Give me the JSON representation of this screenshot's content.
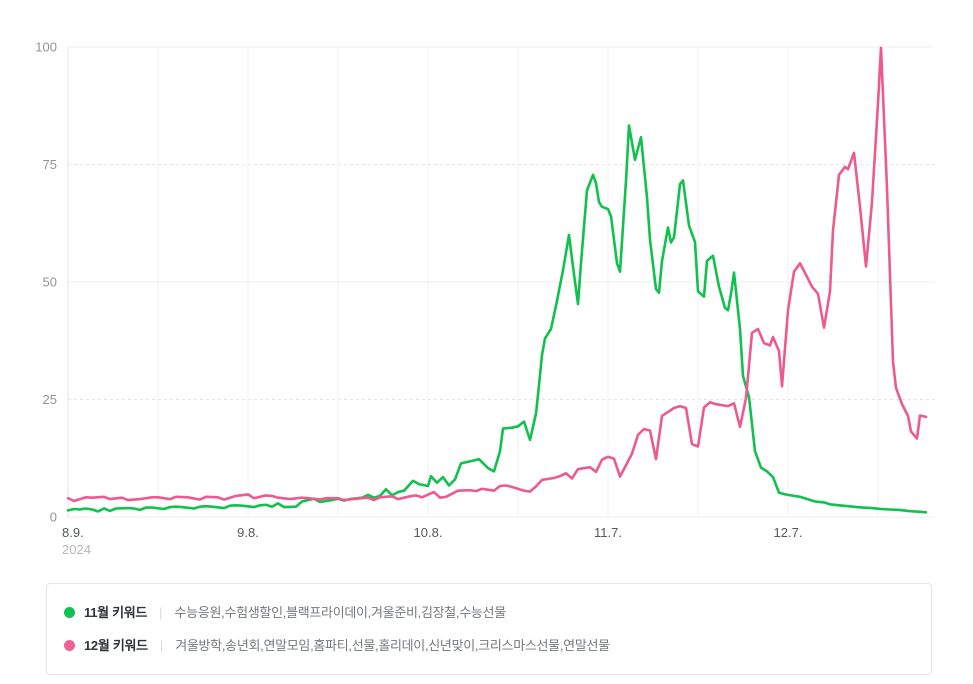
{
  "chart_data": {
    "type": "line",
    "title": "",
    "x_axis": {
      "unit": "date",
      "x_range_days": [
        0,
        144.5
      ],
      "minor_grid_every_days": 15,
      "ticks": [
        {
          "day": 0,
          "label": "8.9.",
          "sub": "2024"
        },
        {
          "day": 30,
          "label": "9.8."
        },
        {
          "day": 60,
          "label": "10.8."
        },
        {
          "day": 90,
          "label": "11.7."
        },
        {
          "day": 120,
          "label": "12.7."
        }
      ]
    },
    "y_axis": {
      "range": [
        0,
        100
      ],
      "ticks": [
        0,
        25,
        50,
        75,
        100
      ]
    },
    "grid": {
      "h_solid": [
        0,
        50,
        100
      ],
      "h_dashed": [
        25,
        75
      ],
      "vertical": true
    },
    "legend_position": "bottom",
    "series": [
      {
        "name": "11월 키워드",
        "color": "#10c14e",
        "points": [
          [
            0,
            1.4
          ],
          [
            1,
            1.7
          ],
          [
            2,
            1.6
          ],
          [
            3,
            1.8
          ],
          [
            4,
            1.6
          ],
          [
            5,
            1.2
          ],
          [
            6,
            1.8
          ],
          [
            7,
            1.3
          ],
          [
            8,
            1.8
          ],
          [
            10,
            1.9
          ],
          [
            11,
            1.8
          ],
          [
            12,
            1.5
          ],
          [
            13,
            2.0
          ],
          [
            14,
            2.0
          ],
          [
            16,
            1.7
          ],
          [
            17,
            2.1
          ],
          [
            18,
            2.2
          ],
          [
            19,
            2.1
          ],
          [
            21,
            1.8
          ],
          [
            22,
            2.2
          ],
          [
            23,
            2.3
          ],
          [
            24,
            2.2
          ],
          [
            26,
            1.9
          ],
          [
            27,
            2.4
          ],
          [
            28,
            2.5
          ],
          [
            29,
            2.4
          ],
          [
            31,
            2.1
          ],
          [
            32,
            2.5
          ],
          [
            33,
            2.6
          ],
          [
            34,
            2.2
          ],
          [
            35,
            2.9
          ],
          [
            36,
            2.1
          ],
          [
            38,
            2.2
          ],
          [
            39,
            3.3
          ],
          [
            40,
            3.6
          ],
          [
            41,
            3.9
          ],
          [
            42,
            3.2
          ],
          [
            44,
            3.6
          ],
          [
            45,
            3.9
          ],
          [
            46,
            3.5
          ],
          [
            47,
            3.8
          ],
          [
            49,
            4.1
          ],
          [
            50,
            4.7
          ],
          [
            51,
            4.1
          ],
          [
            52,
            4.5
          ],
          [
            53,
            5.9
          ],
          [
            54,
            4.6
          ],
          [
            55,
            5.3
          ],
          [
            56,
            5.6
          ],
          [
            57.5,
            7.7
          ],
          [
            58.5,
            7.0
          ],
          [
            60,
            6.6
          ],
          [
            60.5,
            8.7
          ],
          [
            61.5,
            7.3
          ],
          [
            62.5,
            8.5
          ],
          [
            63.5,
            6.7
          ],
          [
            64.5,
            8.0
          ],
          [
            65.5,
            11.4
          ],
          [
            66.5,
            11.7
          ],
          [
            67.5,
            12.0
          ],
          [
            68.5,
            12.3
          ],
          [
            70,
            10.4
          ],
          [
            71,
            9.7
          ],
          [
            72,
            14.0
          ],
          [
            72.5,
            18.8
          ],
          [
            74,
            19.0
          ],
          [
            75,
            19.3
          ],
          [
            76,
            20.3
          ],
          [
            77,
            16.4
          ],
          [
            78,
            22.0
          ],
          [
            78.5,
            28.0
          ],
          [
            79,
            34.5
          ],
          [
            79.5,
            38.0
          ],
          [
            80.5,
            40.0
          ],
          [
            81.5,
            46.0
          ],
          [
            82.5,
            52.5
          ],
          [
            83.5,
            60.0
          ],
          [
            84.5,
            50.0
          ],
          [
            85,
            45.3
          ],
          [
            85.5,
            54.0
          ],
          [
            86.5,
            69.5
          ],
          [
            87.5,
            72.8
          ],
          [
            88,
            71.0
          ],
          [
            88.5,
            67.0
          ],
          [
            89,
            66.0
          ],
          [
            90,
            65.5
          ],
          [
            90.5,
            64.0
          ],
          [
            91.5,
            54.0
          ],
          [
            92,
            52.2
          ],
          [
            93,
            71.5
          ],
          [
            93.5,
            83.3
          ],
          [
            94.5,
            76.0
          ],
          [
            95.5,
            80.8
          ],
          [
            96.5,
            68.0
          ],
          [
            97,
            59.0
          ],
          [
            98,
            48.5
          ],
          [
            98.5,
            47.7
          ],
          [
            99,
            54.5
          ],
          [
            100,
            61.6
          ],
          [
            100.5,
            58.4
          ],
          [
            101,
            59.5
          ],
          [
            102,
            70.8
          ],
          [
            102.5,
            71.6
          ],
          [
            103.5,
            62.0
          ],
          [
            104.5,
            58.5
          ],
          [
            105,
            48.0
          ],
          [
            106,
            46.9
          ],
          [
            106.5,
            54.5
          ],
          [
            107.5,
            55.6
          ],
          [
            108.5,
            49.0
          ],
          [
            109.5,
            44.5
          ],
          [
            110,
            44.0
          ],
          [
            110.5,
            47.5
          ],
          [
            111,
            52.0
          ],
          [
            112,
            40.0
          ],
          [
            112.5,
            30.0
          ],
          [
            113.5,
            25.5
          ],
          [
            114.5,
            14.0
          ],
          [
            115.5,
            10.5
          ],
          [
            116.5,
            9.7
          ],
          [
            117.5,
            8.5
          ],
          [
            118.5,
            5.2
          ],
          [
            119.5,
            4.8
          ],
          [
            121,
            4.5
          ],
          [
            122,
            4.3
          ],
          [
            123.5,
            3.7
          ],
          [
            124.5,
            3.3
          ],
          [
            126,
            3.1
          ],
          [
            127,
            2.7
          ],
          [
            128.5,
            2.5
          ],
          [
            130,
            2.3
          ],
          [
            131.5,
            2.1
          ],
          [
            132.5,
            2.0
          ],
          [
            134,
            1.9
          ],
          [
            135.5,
            1.7
          ],
          [
            137,
            1.6
          ],
          [
            138.5,
            1.5
          ],
          [
            140,
            1.3
          ],
          [
            141,
            1.2
          ],
          [
            142,
            1.1
          ],
          [
            143,
            1.0
          ]
        ]
      },
      {
        "name": "12월 키워드",
        "color": "#ed5a90",
        "points": [
          [
            0,
            4.0
          ],
          [
            1,
            3.4
          ],
          [
            3,
            4.2
          ],
          [
            4,
            4.1
          ],
          [
            6,
            4.3
          ],
          [
            7,
            3.8
          ],
          [
            9,
            4.1
          ],
          [
            10,
            3.6
          ],
          [
            12,
            3.8
          ],
          [
            14,
            4.2
          ],
          [
            15,
            4.2
          ],
          [
            17,
            3.8
          ],
          [
            18,
            4.3
          ],
          [
            20,
            4.2
          ],
          [
            22,
            3.7
          ],
          [
            23,
            4.3
          ],
          [
            25,
            4.2
          ],
          [
            26,
            3.7
          ],
          [
            28,
            4.5
          ],
          [
            30,
            4.8
          ],
          [
            31,
            4.0
          ],
          [
            33,
            4.6
          ],
          [
            34,
            4.5
          ],
          [
            35,
            4.1
          ],
          [
            37,
            3.8
          ],
          [
            39,
            4.1
          ],
          [
            40,
            4.0
          ],
          [
            42,
            3.7
          ],
          [
            43,
            4.0
          ],
          [
            45,
            4.0
          ],
          [
            46,
            3.6
          ],
          [
            48,
            3.9
          ],
          [
            50,
            4.1
          ],
          [
            51,
            3.6
          ],
          [
            52,
            4.2
          ],
          [
            54,
            4.4
          ],
          [
            55,
            3.8
          ],
          [
            57,
            4.4
          ],
          [
            58,
            4.6
          ],
          [
            59,
            4.2
          ],
          [
            61,
            5.3
          ],
          [
            62,
            4.1
          ],
          [
            63,
            4.3
          ],
          [
            65,
            5.6
          ],
          [
            67,
            5.7
          ],
          [
            68,
            5.5
          ],
          [
            69,
            6.0
          ],
          [
            71,
            5.6
          ],
          [
            72,
            6.6
          ],
          [
            73,
            6.7
          ],
          [
            74,
            6.4
          ],
          [
            76,
            5.6
          ],
          [
            77,
            5.4
          ],
          [
            78,
            6.5
          ],
          [
            79,
            7.9
          ],
          [
            81,
            8.3
          ],
          [
            82,
            8.7
          ],
          [
            83,
            9.3
          ],
          [
            84,
            8.2
          ],
          [
            85,
            10.2
          ],
          [
            87,
            10.6
          ],
          [
            88,
            9.6
          ],
          [
            89,
            12.2
          ],
          [
            90,
            12.8
          ],
          [
            91,
            12.4
          ],
          [
            92,
            8.6
          ],
          [
            94,
            13.5
          ],
          [
            95,
            17.5
          ],
          [
            96,
            18.7
          ],
          [
            97,
            18.4
          ],
          [
            98,
            12.3
          ],
          [
            99,
            21.5
          ],
          [
            101,
            23.2
          ],
          [
            102,
            23.6
          ],
          [
            103,
            23.2
          ],
          [
            104,
            15.5
          ],
          [
            105,
            15.0
          ],
          [
            106,
            23.3
          ],
          [
            107,
            24.4
          ],
          [
            108,
            24.0
          ],
          [
            110,
            23.6
          ],
          [
            111,
            24.2
          ],
          [
            112,
            19.2
          ],
          [
            113,
            25.3
          ],
          [
            114,
            39.2
          ],
          [
            115,
            40.0
          ],
          [
            116,
            37.0
          ],
          [
            117,
            36.5
          ],
          [
            117.5,
            38.3
          ],
          [
            118.5,
            35.3
          ],
          [
            119,
            27.8
          ],
          [
            120,
            44.0
          ],
          [
            121,
            52.2
          ],
          [
            122,
            54.0
          ],
          [
            123,
            51.5
          ],
          [
            124,
            49.0
          ],
          [
            125,
            47.5
          ],
          [
            126,
            40.3
          ],
          [
            127,
            48.0
          ],
          [
            127.5,
            61.0
          ],
          [
            128.5,
            72.8
          ],
          [
            129.5,
            74.5
          ],
          [
            130,
            74.0
          ],
          [
            131,
            77.5
          ],
          [
            132,
            66.0
          ],
          [
            133,
            53.3
          ],
          [
            134,
            67.0
          ],
          [
            135,
            88.0
          ],
          [
            135.5,
            99.8
          ],
          [
            136.5,
            70.0
          ],
          [
            137.5,
            33.0
          ],
          [
            138,
            27.5
          ],
          [
            139,
            24.0
          ],
          [
            140,
            21.5
          ],
          [
            140.5,
            18.2
          ],
          [
            141.5,
            16.7
          ],
          [
            142,
            21.6
          ],
          [
            143,
            21.3
          ]
        ]
      }
    ]
  },
  "legend": {
    "items": [
      {
        "label": "11월 키워드",
        "separator": "|",
        "keywords": "수능응원,수험생할인,블랙프라이데이,겨울준비,김장철,수능선물",
        "color": "#10c14e"
      },
      {
        "label": "12월 키워드",
        "separator": "|",
        "keywords": "겨울방학,송년회,연말모임,홈파티,선물,홀리데이,신년맞이,크리스마스선물,연말선물",
        "color": "#ee6298"
      }
    ]
  },
  "colors": {
    "grid_solid": "#ededed",
    "grid_dashed": "#e4e4e4",
    "grid_vertical": "#f1f1f1",
    "axis_line": "#e3e3e3",
    "y_tick_text": "#8f9398",
    "x_tick_text": "#54585c",
    "x_year_text": "#b4b7ba"
  }
}
